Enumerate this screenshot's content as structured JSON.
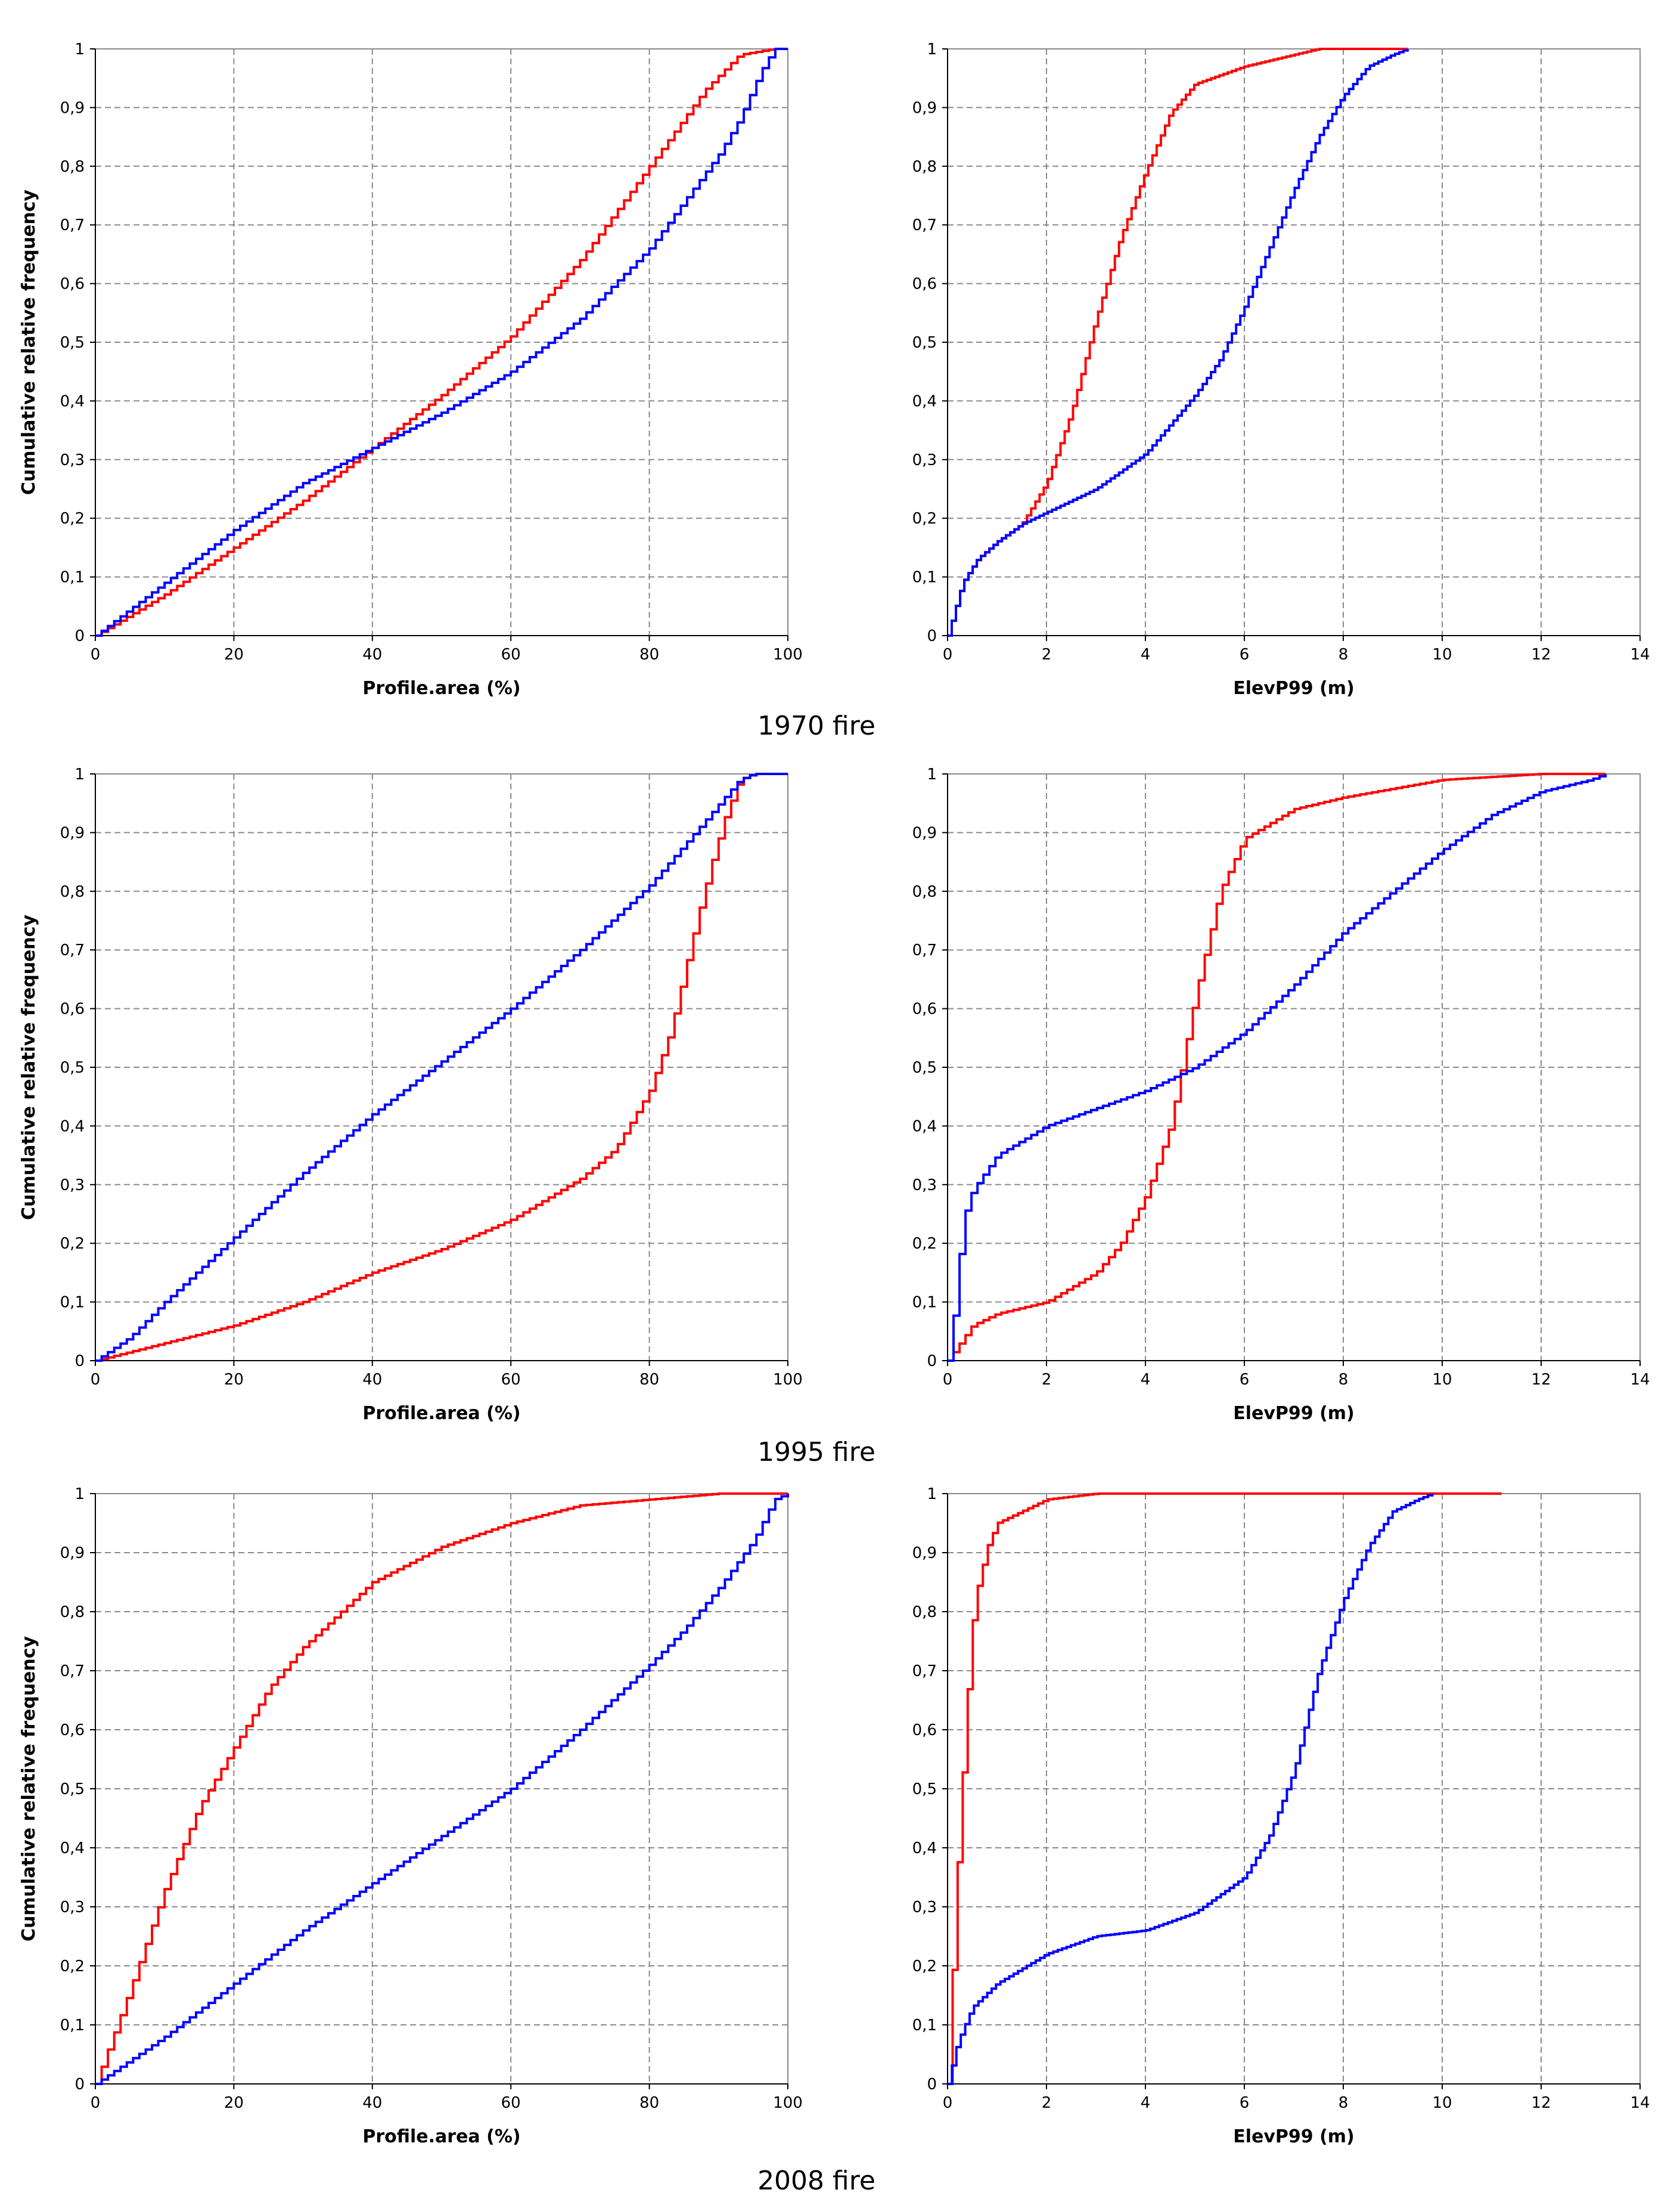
{
  "series_colors": {
    "red": "#ff0000",
    "blue": "#0000ff"
  },
  "captions": [
    "1970 fire",
    "1995 fire",
    "2008 fire"
  ],
  "chart_data": [
    {
      "type": "line",
      "row": 0,
      "col": 0,
      "xlabel": "Profile.area (%)",
      "ylabel": "Cumulative relative frequency",
      "xlim": [
        0,
        100
      ],
      "ylim": [
        0,
        1
      ],
      "xticks": [
        0,
        20,
        40,
        60,
        80,
        100
      ],
      "xtick_labels": [
        "0",
        "20",
        "40",
        "60",
        "80",
        "100"
      ],
      "yticks": [
        0,
        0.1,
        0.2,
        0.3,
        0.4,
        0.5,
        0.6,
        0.7,
        0.8,
        0.9,
        1
      ],
      "ytick_labels": [
        "0",
        "0,1",
        "0,2",
        "0,3",
        "0,4",
        "0,5",
        "0,6",
        "0,7",
        "0,8",
        "0,9",
        "1"
      ],
      "grid": true,
      "series": [
        {
          "name": "red",
          "color": "#ff0000",
          "x": [
            0,
            10,
            20,
            30,
            40,
            50,
            60,
            70,
            80,
            88,
            93,
            98,
            100
          ],
          "y": [
            0,
            0.07,
            0.15,
            0.23,
            0.32,
            0.41,
            0.51,
            0.64,
            0.8,
            0.93,
            0.99,
            1.0,
            1.0
          ]
        },
        {
          "name": "blue",
          "color": "#0000ff",
          "x": [
            0,
            10,
            20,
            30,
            40,
            50,
            60,
            70,
            80,
            85,
            90,
            93,
            96,
            98,
            100
          ],
          "y": [
            0,
            0.09,
            0.18,
            0.26,
            0.32,
            0.38,
            0.45,
            0.54,
            0.66,
            0.74,
            0.82,
            0.88,
            0.96,
            1.0,
            1.0
          ]
        }
      ]
    },
    {
      "type": "line",
      "row": 0,
      "col": 1,
      "xlabel": "ElevP99 (m)",
      "ylabel": "",
      "xlim": [
        0,
        14
      ],
      "ylim": [
        0,
        1
      ],
      "xticks": [
        0,
        2,
        4,
        6,
        8,
        10,
        12,
        14
      ],
      "xtick_labels": [
        "0",
        "2",
        "4",
        "6",
        "8",
        "10",
        "12",
        "14"
      ],
      "yticks": [
        0,
        0.1,
        0.2,
        0.3,
        0.4,
        0.5,
        0.6,
        0.7,
        0.8,
        0.9,
        1
      ],
      "ytick_labels": [
        "0",
        "0,1",
        "0,2",
        "0,3",
        "0,4",
        "0,5",
        "0,6",
        "0,7",
        "0,8",
        "0,9",
        "1"
      ],
      "grid": true,
      "series": [
        {
          "name": "red",
          "color": "#ff0000",
          "x": [
            0,
            0.3,
            0.6,
            1.0,
            1.5,
            2.0,
            2.5,
            3.0,
            3.5,
            4.0,
            4.5,
            5.0,
            6.0,
            7.0,
            7.5,
            9.3
          ],
          "y": [
            0,
            0.09,
            0.13,
            0.16,
            0.19,
            0.26,
            0.38,
            0.54,
            0.68,
            0.79,
            0.89,
            0.94,
            0.97,
            0.99,
            1.0,
            1.0
          ]
        },
        {
          "name": "blue",
          "color": "#0000ff",
          "x": [
            0,
            0.3,
            0.6,
            1.0,
            1.5,
            2.0,
            3.0,
            4.0,
            5.0,
            5.5,
            6.0,
            6.5,
            7.0,
            7.5,
            8.0,
            8.5,
            9.0,
            9.3
          ],
          "y": [
            0,
            0.09,
            0.13,
            0.16,
            0.19,
            0.21,
            0.25,
            0.31,
            0.41,
            0.47,
            0.56,
            0.66,
            0.76,
            0.85,
            0.92,
            0.97,
            0.99,
            1.0
          ]
        }
      ]
    },
    {
      "type": "line",
      "row": 1,
      "col": 0,
      "xlabel": "Profile.area (%)",
      "ylabel": "Cumulative relative frequency",
      "xlim": [
        0,
        100
      ],
      "ylim": [
        0,
        1
      ],
      "xticks": [
        0,
        20,
        40,
        60,
        80,
        100
      ],
      "xtick_labels": [
        "0",
        "20",
        "40",
        "60",
        "80",
        "100"
      ],
      "yticks": [
        0,
        0.1,
        0.2,
        0.3,
        0.4,
        0.5,
        0.6,
        0.7,
        0.8,
        0.9,
        1
      ],
      "ytick_labels": [
        "0",
        "0,1",
        "0,2",
        "0,3",
        "0,4",
        "0,5",
        "0,6",
        "0,7",
        "0,8",
        "0,9",
        "1"
      ],
      "grid": true,
      "series": [
        {
          "name": "red",
          "color": "#ff0000",
          "x": [
            0,
            10,
            20,
            30,
            40,
            50,
            60,
            70,
            75,
            80,
            83,
            85,
            87,
            89,
            91,
            93,
            95,
            100
          ],
          "y": [
            0,
            0.03,
            0.06,
            0.1,
            0.15,
            0.19,
            0.24,
            0.31,
            0.36,
            0.46,
            0.56,
            0.66,
            0.76,
            0.85,
            0.93,
            0.99,
            1.0,
            1.0
          ]
        },
        {
          "name": "blue",
          "color": "#0000ff",
          "x": [
            0,
            5,
            10,
            20,
            30,
            40,
            50,
            60,
            70,
            80,
            88,
            93,
            95,
            100
          ],
          "y": [
            0,
            0.04,
            0.1,
            0.21,
            0.32,
            0.42,
            0.51,
            0.6,
            0.7,
            0.81,
            0.92,
            0.99,
            1.0,
            1.0
          ]
        }
      ]
    },
    {
      "type": "line",
      "row": 1,
      "col": 1,
      "xlabel": "ElevP99 (m)",
      "ylabel": "",
      "xlim": [
        0,
        14
      ],
      "ylim": [
        0,
        1
      ],
      "xticks": [
        0,
        2,
        4,
        6,
        8,
        10,
        12,
        14
      ],
      "xtick_labels": [
        "0",
        "2",
        "4",
        "6",
        "8",
        "10",
        "12",
        "14"
      ],
      "yticks": [
        0,
        0.1,
        0.2,
        0.3,
        0.4,
        0.5,
        0.6,
        0.7,
        0.8,
        0.9,
        1
      ],
      "ytick_labels": [
        "0",
        "0,1",
        "0,2",
        "0,3",
        "0,4",
        "0,5",
        "0,6",
        "0,7",
        "0,8",
        "0,9",
        "1"
      ],
      "grid": true,
      "series": [
        {
          "name": "red",
          "color": "#ff0000",
          "x": [
            0,
            0.5,
            1.0,
            2.0,
            3.0,
            3.5,
            4.0,
            4.5,
            5.0,
            5.5,
            6.0,
            7.0,
            8.0,
            10.0,
            12.0,
            13.3
          ],
          "y": [
            0,
            0.06,
            0.08,
            0.1,
            0.15,
            0.2,
            0.28,
            0.4,
            0.62,
            0.8,
            0.89,
            0.94,
            0.96,
            0.99,
            1.0,
            1.0
          ]
        },
        {
          "name": "blue",
          "color": "#0000ff",
          "x": [
            0,
            0.1,
            0.2,
            0.3,
            0.5,
            1.0,
            2.0,
            3.0,
            4.0,
            5.0,
            6.0,
            7.0,
            8.0,
            9.0,
            10.0,
            11.0,
            12.0,
            13.0,
            13.3
          ],
          "y": [
            0,
            0.06,
            0.14,
            0.24,
            0.29,
            0.35,
            0.4,
            0.43,
            0.46,
            0.5,
            0.56,
            0.64,
            0.73,
            0.8,
            0.87,
            0.93,
            0.97,
            0.99,
            1.0
          ]
        }
      ]
    },
    {
      "type": "line",
      "row": 2,
      "col": 0,
      "xlabel": "Profile.area (%)",
      "ylabel": "Cumulative relative frequency",
      "xlim": [
        0,
        100
      ],
      "ylim": [
        0,
        1
      ],
      "xticks": [
        0,
        20,
        40,
        60,
        80,
        100
      ],
      "xtick_labels": [
        "0",
        "20",
        "40",
        "60",
        "80",
        "100"
      ],
      "yticks": [
        0,
        0.1,
        0.2,
        0.3,
        0.4,
        0.5,
        0.6,
        0.7,
        0.8,
        0.9,
        1
      ],
      "ytick_labels": [
        "0",
        "0,1",
        "0,2",
        "0,3",
        "0,4",
        "0,5",
        "0,6",
        "0,7",
        "0,8",
        "0,9",
        "1"
      ],
      "grid": true,
      "series": [
        {
          "name": "red",
          "color": "#ff0000",
          "x": [
            0,
            5,
            10,
            15,
            20,
            25,
            30,
            40,
            50,
            60,
            70,
            80,
            90,
            100
          ],
          "y": [
            0,
            0.16,
            0.33,
            0.47,
            0.57,
            0.67,
            0.74,
            0.85,
            0.91,
            0.95,
            0.98,
            0.99,
            1.0,
            1.0
          ]
        },
        {
          "name": "blue",
          "color": "#0000ff",
          "x": [
            0,
            10,
            20,
            30,
            40,
            50,
            60,
            70,
            80,
            85,
            90,
            95,
            98,
            100
          ],
          "y": [
            0,
            0.08,
            0.17,
            0.26,
            0.34,
            0.42,
            0.5,
            0.6,
            0.71,
            0.77,
            0.84,
            0.92,
            0.99,
            1.0
          ]
        }
      ]
    },
    {
      "type": "line",
      "row": 2,
      "col": 1,
      "xlabel": "ElevP99 (m)",
      "ylabel": "",
      "xlim": [
        0,
        14
      ],
      "ylim": [
        0,
        1
      ],
      "xticks": [
        0,
        2,
        4,
        6,
        8,
        10,
        12,
        14
      ],
      "xtick_labels": [
        "0",
        "2",
        "4",
        "6",
        "8",
        "10",
        "12",
        "14"
      ],
      "yticks": [
        0,
        0.1,
        0.2,
        0.3,
        0.4,
        0.5,
        0.6,
        0.7,
        0.8,
        0.9,
        1
      ],
      "ytick_labels": [
        "0",
        "0,1",
        "0,2",
        "0,3",
        "0,4",
        "0,5",
        "0,6",
        "0,7",
        "0,8",
        "0,9",
        "1"
      ],
      "grid": true,
      "series": [
        {
          "name": "red",
          "color": "#ff0000",
          "x": [
            0,
            0.1,
            0.2,
            0.3,
            0.4,
            0.5,
            0.6,
            0.8,
            1.0,
            1.5,
            2.0,
            3.0,
            4.0,
            11.2
          ],
          "y": [
            0,
            0.19,
            0.37,
            0.52,
            0.66,
            0.78,
            0.84,
            0.91,
            0.95,
            0.97,
            0.99,
            1.0,
            1.0,
            1.0
          ]
        },
        {
          "name": "blue",
          "color": "#0000ff",
          "x": [
            0,
            0.2,
            0.5,
            1.0,
            2.0,
            3.0,
            4.0,
            5.0,
            6.0,
            6.5,
            7.0,
            7.5,
            8.0,
            8.5,
            9.0,
            9.5,
            9.8
          ],
          "y": [
            0,
            0.07,
            0.13,
            0.17,
            0.22,
            0.25,
            0.26,
            0.29,
            0.35,
            0.42,
            0.53,
            0.7,
            0.82,
            0.91,
            0.97,
            0.99,
            1.0
          ]
        }
      ]
    }
  ]
}
